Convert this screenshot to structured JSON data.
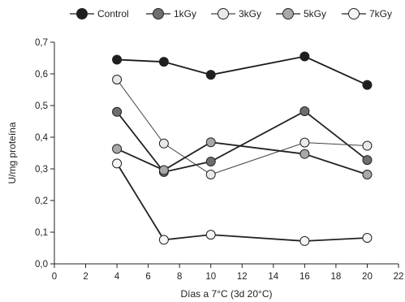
{
  "chart_data": {
    "type": "line",
    "xlabel": "Días a 7°C (3d 20°C)",
    "ylabel": "U/mg proteína",
    "xlim": [
      0,
      22
    ],
    "ylim": [
      0.0,
      0.7
    ],
    "x_ticks": [
      0,
      2,
      4,
      6,
      8,
      10,
      12,
      14,
      16,
      18,
      20,
      22
    ],
    "y_ticks": [
      0.0,
      0.1,
      0.2,
      0.3,
      0.4,
      0.5,
      0.6,
      0.7
    ],
    "x_tick_labels": [
      "0",
      "2",
      "4",
      "6",
      "8",
      "10",
      "12",
      "14",
      "16",
      "18",
      "20",
      "22"
    ],
    "y_tick_labels": [
      "0,0",
      "0,1",
      "0,2",
      "0,3",
      "0,4",
      "0,5",
      "0,6",
      "0,7"
    ],
    "grid": false,
    "legend_position": "top",
    "series": [
      {
        "name": "Control",
        "color": "#1f1f1f",
        "line_color": "#1a1a1a",
        "line_width_class": "thick",
        "x": [
          4,
          7,
          10,
          16,
          20
        ],
        "y": [
          0.645,
          0.638,
          0.597,
          0.655,
          0.565
        ]
      },
      {
        "name": "1kGy",
        "color": "#6e6e6e",
        "line_color": "#222222",
        "line_width_class": "thick",
        "x": [
          4,
          7,
          10,
          16,
          20
        ],
        "y": [
          0.48,
          0.29,
          0.323,
          0.482,
          0.328
        ]
      },
      {
        "name": "3kGy",
        "color": "#e9e9e9",
        "line_color": "#444444",
        "line_width_class": "thin",
        "x": [
          4,
          7,
          10,
          16,
          20
        ],
        "y": [
          0.582,
          0.38,
          0.282,
          0.383,
          0.373
        ]
      },
      {
        "name": "5kGy",
        "color": "#a8a8a8",
        "line_color": "#222222",
        "line_width_class": "thick",
        "x": [
          4,
          7,
          10,
          16,
          20
        ],
        "y": [
          0.363,
          0.296,
          0.384,
          0.347,
          0.282
        ]
      },
      {
        "name": "7kGy",
        "color": "#f6f6f6",
        "line_color": "#222222",
        "line_width_class": "thick",
        "x": [
          4,
          7,
          10,
          16,
          20
        ],
        "y": [
          0.317,
          0.076,
          0.092,
          0.072,
          0.082
        ]
      }
    ]
  }
}
